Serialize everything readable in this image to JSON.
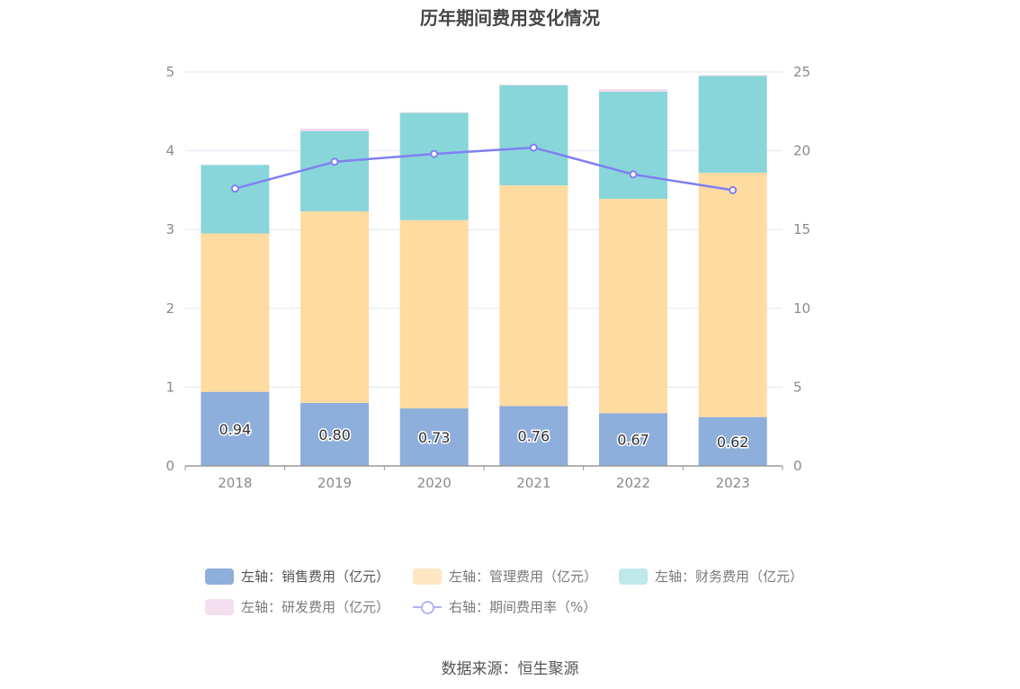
{
  "chart_data": {
    "type": "bar",
    "title": "历年期间费用变化情况",
    "categories": [
      "2018",
      "2019",
      "2020",
      "2021",
      "2022",
      "2023"
    ],
    "y_left": {
      "min": 0,
      "max": 5,
      "ticks": [
        "0",
        "1",
        "2",
        "3",
        "4",
        "5"
      ]
    },
    "y_right": {
      "min": 0,
      "max": 25,
      "ticks": [
        "0",
        "5",
        "10",
        "15",
        "20",
        "25"
      ]
    },
    "stacked": true,
    "series": [
      {
        "name": "左轴：销售费用（亿元）",
        "axis": "left",
        "color": "#8eaedb",
        "values": [
          0.94,
          0.8,
          0.73,
          0.76,
          0.67,
          0.62
        ],
        "labels": [
          "0.94",
          "0.80",
          "0.73",
          "0.76",
          "0.67",
          "0.62"
        ]
      },
      {
        "name": "左轴：管理费用（亿元）",
        "axis": "left",
        "color": "#fedba1",
        "values": [
          2.01,
          2.43,
          2.39,
          2.8,
          2.72,
          3.1
        ]
      },
      {
        "name": "左轴：财务费用（亿元）",
        "axis": "left",
        "color": "#88d6da",
        "values": [
          0.87,
          1.02,
          1.36,
          1.27,
          1.36,
          1.23
        ]
      },
      {
        "name": "左轴：研发费用（亿元）",
        "axis": "left",
        "color": "#f3d8ea",
        "values": [
          0.0,
          0.03,
          0.01,
          0.01,
          0.03,
          0.01
        ]
      },
      {
        "name": "右轴：期间费用率（%）",
        "axis": "right",
        "type": "line",
        "color": "#8080f0",
        "values": [
          17.6,
          19.3,
          19.8,
          20.2,
          18.5,
          17.5
        ]
      }
    ],
    "legend_position": "bottom",
    "grid": true
  },
  "legend": [
    {
      "label": "左轴：销售费用（亿元）",
      "color": "#8eaedb",
      "kind": "box"
    },
    {
      "label": "左轴：管理费用（亿元）",
      "color": "#fde6c1",
      "kind": "box"
    },
    {
      "label": "左轴：财务费用（亿元）",
      "color": "#bfe8ea",
      "kind": "box"
    },
    {
      "label": "左轴：研发费用（亿元）",
      "color": "#f4dff0",
      "kind": "box"
    },
    {
      "label": "右轴：期间费用率（%）",
      "color": "#b3b3f5",
      "kind": "line"
    }
  ],
  "source": "数据来源：恒生聚源"
}
